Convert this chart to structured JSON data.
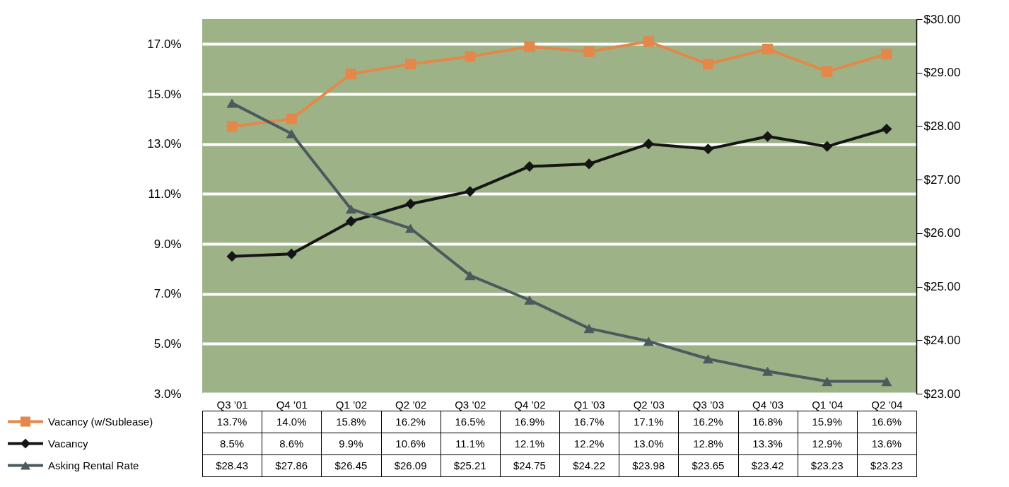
{
  "chart_data": {
    "type": "line",
    "categories": [
      "Q3 ’01",
      "Q4 ’01",
      "Q1 ’02",
      "Q2 ’02",
      "Q3 ’02",
      "Q4 ’02",
      "Q1 ’03",
      "Q2 ’03",
      "Q3 ’03",
      "Q4 ’03",
      "Q1 ’04",
      "Q2 ’04"
    ],
    "series": [
      {
        "name": "Vacancy (w/Sublease)",
        "color": "#e3884a",
        "marker": "square",
        "values": [
          13.7,
          14.0,
          15.8,
          16.2,
          16.5,
          16.9,
          16.7,
          17.1,
          16.2,
          16.8,
          15.9,
          16.6
        ],
        "value_labels": [
          "13.7%",
          "14.0%",
          "15.8%",
          "16.2%",
          "16.5%",
          "16.9%",
          "16.7%",
          "17.1%",
          "16.2%",
          "16.8%",
          "15.9%",
          "16.6%"
        ]
      },
      {
        "name": "Vacancy",
        "color": "#151515",
        "marker": "diamond",
        "values": [
          8.5,
          8.6,
          9.9,
          10.6,
          11.1,
          12.1,
          12.2,
          13.0,
          12.8,
          13.3,
          12.9,
          13.6
        ],
        "value_labels": [
          "8.5%",
          "8.6%",
          "9.9%",
          "10.6%",
          "11.1%",
          "12.1%",
          "12.2%",
          "13.0%",
          "12.8%",
          "13.3%",
          "12.9%",
          "13.6%"
        ]
      },
      {
        "name": "Asking Rental Rate",
        "color": "#4c5a5e",
        "marker": "triangle",
        "axis": "y2",
        "values": [
          28.43,
          27.86,
          26.45,
          26.09,
          25.21,
          24.75,
          24.22,
          23.98,
          23.65,
          23.42,
          23.23,
          23.23
        ],
        "value_labels": [
          "$28.43",
          "$27.86",
          "$26.45",
          "$26.09",
          "$25.21",
          "$24.75",
          "$24.22",
          "$23.98",
          "$23.65",
          "$23.42",
          "$23.23",
          "$23.23"
        ]
      }
    ],
    "ylim": [
      3,
      18
    ],
    "yticks": [
      {
        "value": 3,
        "label": "3.0%"
      },
      {
        "value": 5,
        "label": "5.0%"
      },
      {
        "value": 7,
        "label": "7.0%"
      },
      {
        "value": 9,
        "label": "9.0%"
      },
      {
        "value": 11,
        "label": "11.0%"
      },
      {
        "value": 13,
        "label": "13.0%"
      },
      {
        "value": 15,
        "label": "15.0%"
      },
      {
        "value": 17,
        "label": "17.0%"
      }
    ],
    "y2lim": [
      23,
      30
    ],
    "y2ticks": [
      {
        "value": 23,
        "label": "$23.00"
      },
      {
        "value": 24,
        "label": "$24.00"
      },
      {
        "value": 25,
        "label": "$25.00"
      },
      {
        "value": 26,
        "label": "$26.00"
      },
      {
        "value": 27,
        "label": "$27.00"
      },
      {
        "value": 28,
        "label": "$28.00"
      },
      {
        "value": 29,
        "label": "$29.00"
      },
      {
        "value": 30,
        "label": "$30.00"
      }
    ],
    "grid": "y",
    "legend": "bottom"
  }
}
